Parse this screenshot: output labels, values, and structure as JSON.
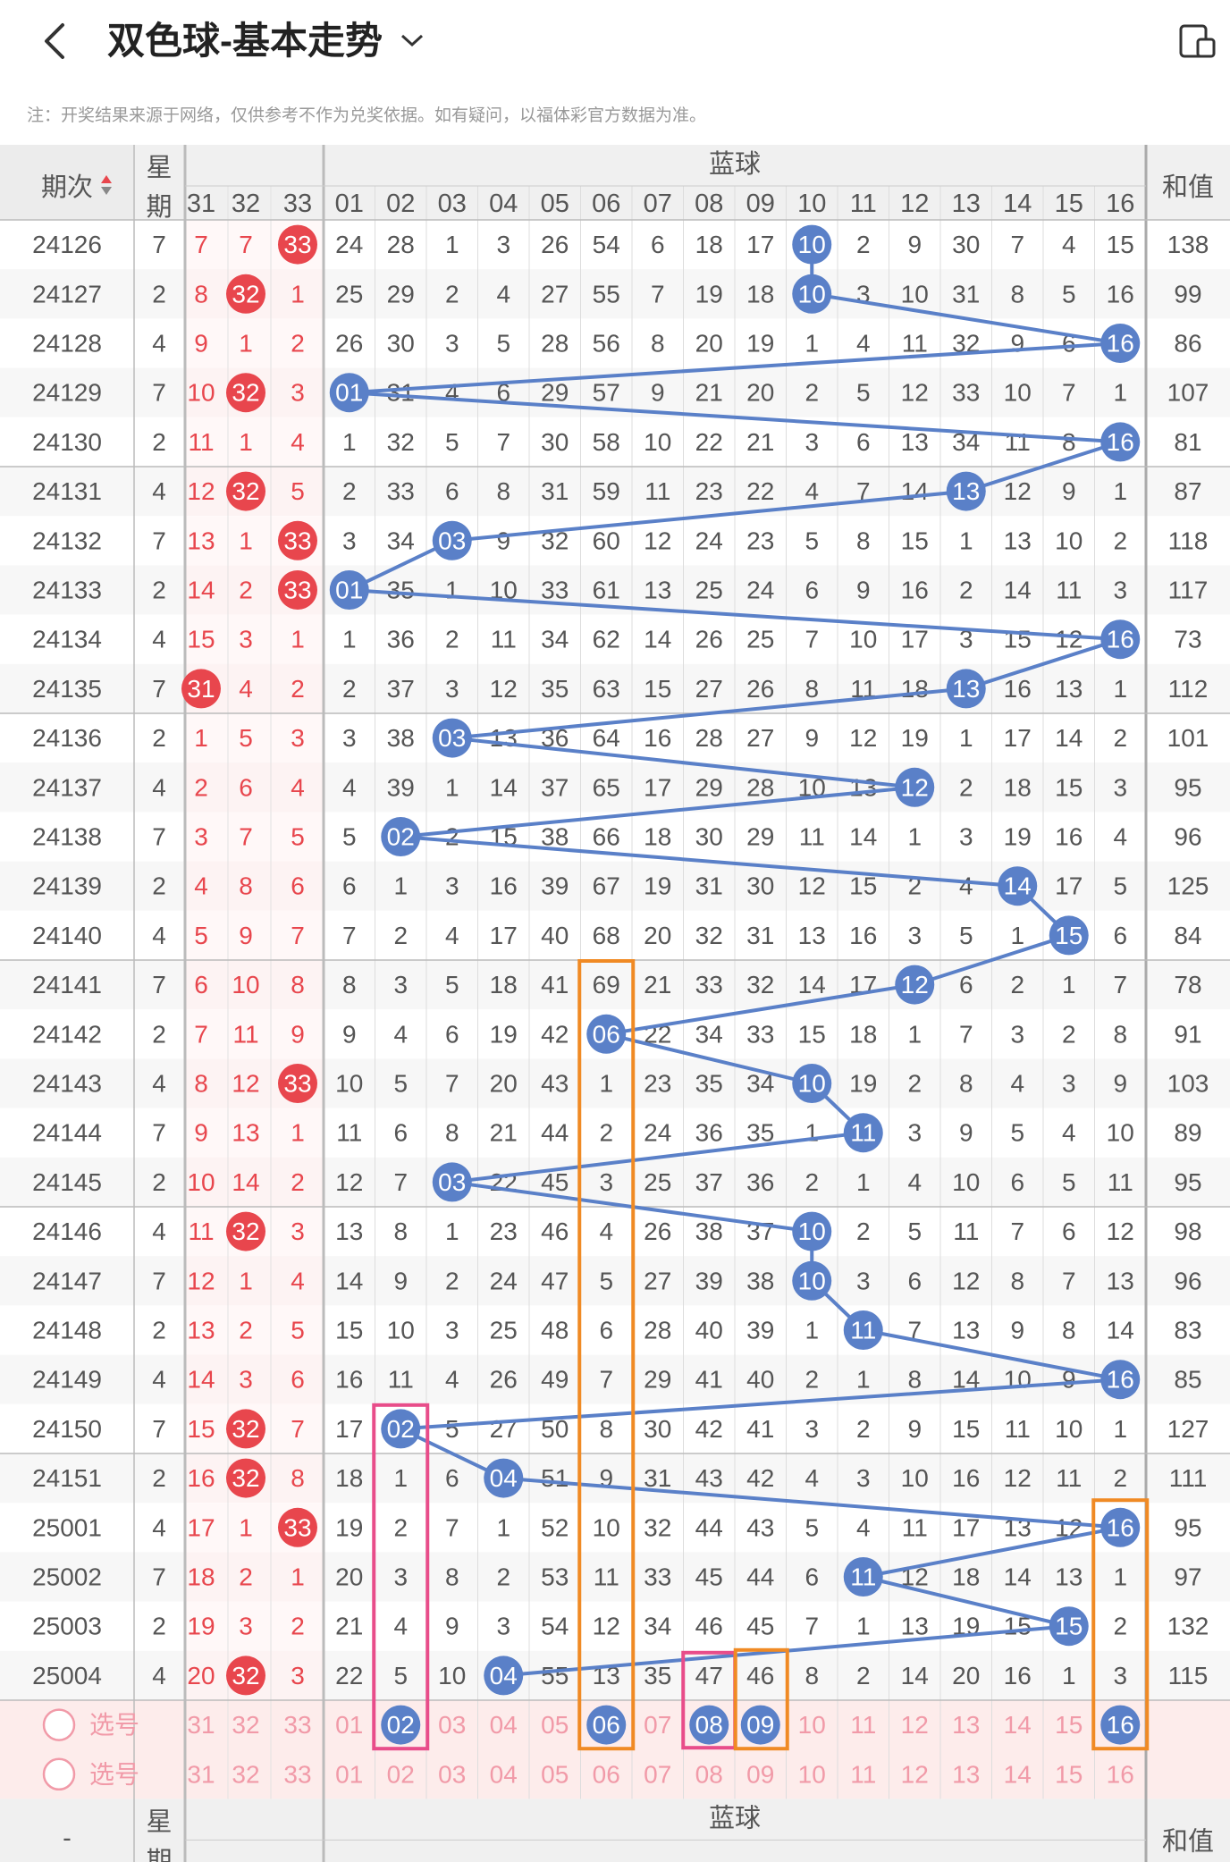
{
  "header": {
    "title": "双色球-基本走势"
  },
  "note": "注：开奖结果来源于网络，仅供参考不作为兑奖依据。如有疑问，以福体彩官方数据为准。",
  "columns": {
    "period": "期次",
    "week": "星期",
    "blue": "蓝球",
    "sum": "和值",
    "red_tail": [
      "31",
      "32",
      "33"
    ],
    "blue_nums": [
      "01",
      "02",
      "03",
      "04",
      "05",
      "06",
      "07",
      "08",
      "09",
      "10",
      "11",
      "12",
      "13",
      "14",
      "15",
      "16"
    ]
  },
  "footer": {
    "select": "选号",
    "period": "-",
    "week": "星期",
    "blue": "蓝球",
    "sum": "和值"
  },
  "colors": {
    "blue_ball": "#5a80c8",
    "red_ball": "#e8464d",
    "orange_box": "#f08a24",
    "pink_box": "#e84d8a"
  },
  "rows": [
    {
      "p": "24126",
      "w": "7",
      "r": [
        "7",
        "7",
        "33"
      ],
      "rb": [
        2
      ],
      "b": 10,
      "s": "138"
    },
    {
      "p": "24127",
      "w": "2",
      "r": [
        "8",
        "32",
        "1"
      ],
      "rb": [
        1
      ],
      "b": 10,
      "s": "99"
    },
    {
      "p": "24128",
      "w": "4",
      "r": [
        "9",
        "1",
        "2"
      ],
      "rb": [],
      "b": 16,
      "s": "86"
    },
    {
      "p": "24129",
      "w": "7",
      "r": [
        "10",
        "32",
        "3"
      ],
      "rb": [
        1
      ],
      "b": 1,
      "s": "107"
    },
    {
      "p": "24130",
      "w": "2",
      "r": [
        "11",
        "1",
        "4"
      ],
      "rb": [],
      "b": 16,
      "s": "81"
    },
    {
      "p": "24131",
      "w": "4",
      "r": [
        "12",
        "32",
        "5"
      ],
      "rb": [
        1
      ],
      "b": 13,
      "s": "87"
    },
    {
      "p": "24132",
      "w": "7",
      "r": [
        "13",
        "1",
        "33"
      ],
      "rb": [
        2
      ],
      "b": 3,
      "s": "118"
    },
    {
      "p": "24133",
      "w": "2",
      "r": [
        "14",
        "2",
        "33"
      ],
      "rb": [
        2
      ],
      "b": 1,
      "s": "117"
    },
    {
      "p": "24134",
      "w": "4",
      "r": [
        "15",
        "3",
        "1"
      ],
      "rb": [],
      "b": 16,
      "s": "73"
    },
    {
      "p": "24135",
      "w": "7",
      "r": [
        "31",
        "4",
        "2"
      ],
      "rb": [
        0
      ],
      "b": 13,
      "s": "112"
    },
    {
      "p": "24136",
      "w": "2",
      "r": [
        "1",
        "5",
        "3"
      ],
      "rb": [],
      "b": 3,
      "s": "101"
    },
    {
      "p": "24137",
      "w": "4",
      "r": [
        "2",
        "6",
        "4"
      ],
      "rb": [],
      "b": 12,
      "s": "95"
    },
    {
      "p": "24138",
      "w": "7",
      "r": [
        "3",
        "7",
        "5"
      ],
      "rb": [],
      "b": 2,
      "s": "96"
    },
    {
      "p": "24139",
      "w": "2",
      "r": [
        "4",
        "8",
        "6"
      ],
      "rb": [],
      "b": 14,
      "s": "125"
    },
    {
      "p": "24140",
      "w": "4",
      "r": [
        "5",
        "9",
        "7"
      ],
      "rb": [],
      "b": 15,
      "s": "84"
    },
    {
      "p": "24141",
      "w": "7",
      "r": [
        "6",
        "10",
        "8"
      ],
      "rb": [],
      "b": 12,
      "s": "78"
    },
    {
      "p": "24142",
      "w": "2",
      "r": [
        "7",
        "11",
        "9"
      ],
      "rb": [],
      "b": 6,
      "s": "91"
    },
    {
      "p": "24143",
      "w": "4",
      "r": [
        "8",
        "12",
        "33"
      ],
      "rb": [
        2
      ],
      "b": 10,
      "s": "103"
    },
    {
      "p": "24144",
      "w": "7",
      "r": [
        "9",
        "13",
        "1"
      ],
      "rb": [],
      "b": 11,
      "s": "89"
    },
    {
      "p": "24145",
      "w": "2",
      "r": [
        "10",
        "14",
        "2"
      ],
      "rb": [],
      "b": 3,
      "s": "95"
    },
    {
      "p": "24146",
      "w": "4",
      "r": [
        "11",
        "32",
        "3"
      ],
      "rb": [
        1
      ],
      "b": 10,
      "s": "98"
    },
    {
      "p": "24147",
      "w": "7",
      "r": [
        "12",
        "1",
        "4"
      ],
      "rb": [],
      "b": 10,
      "s": "96"
    },
    {
      "p": "24148",
      "w": "2",
      "r": [
        "13",
        "2",
        "5"
      ],
      "rb": [],
      "b": 11,
      "s": "83"
    },
    {
      "p": "24149",
      "w": "4",
      "r": [
        "14",
        "3",
        "6"
      ],
      "rb": [],
      "b": 16,
      "s": "85"
    },
    {
      "p": "24150",
      "w": "7",
      "r": [
        "15",
        "32",
        "7"
      ],
      "rb": [
        1
      ],
      "b": 2,
      "s": "127"
    },
    {
      "p": "24151",
      "w": "2",
      "r": [
        "16",
        "32",
        "8"
      ],
      "rb": [
        1
      ],
      "b": 4,
      "s": "111"
    },
    {
      "p": "25001",
      "w": "4",
      "r": [
        "17",
        "1",
        "33"
      ],
      "rb": [
        2
      ],
      "b": 16,
      "s": "95"
    },
    {
      "p": "25002",
      "w": "7",
      "r": [
        "18",
        "2",
        "1"
      ],
      "rb": [],
      "b": 11,
      "s": "97"
    },
    {
      "p": "25003",
      "w": "2",
      "r": [
        "19",
        "3",
        "2"
      ],
      "rb": [],
      "b": 15,
      "s": "132"
    },
    {
      "p": "25004",
      "w": "4",
      "r": [
        "20",
        "32",
        "3"
      ],
      "rb": [
        1
      ],
      "b": 4,
      "s": "115"
    }
  ],
  "blue_matrix": [
    [
      24,
      28,
      1,
      3,
      26,
      54,
      6,
      18,
      17,
      10,
      2,
      9,
      30,
      7,
      4,
      15
    ],
    [
      25,
      29,
      2,
      4,
      27,
      55,
      7,
      19,
      18,
      10,
      3,
      10,
      31,
      8,
      5,
      16
    ],
    [
      26,
      30,
      3,
      5,
      28,
      56,
      8,
      20,
      19,
      1,
      4,
      11,
      32,
      9,
      6,
      16
    ],
    [
      1,
      31,
      4,
      6,
      29,
      57,
      9,
      21,
      20,
      2,
      5,
      12,
      33,
      10,
      7,
      1
    ],
    [
      1,
      32,
      5,
      7,
      30,
      58,
      10,
      22,
      21,
      3,
      6,
      13,
      34,
      11,
      8,
      16
    ],
    [
      2,
      33,
      6,
      8,
      31,
      59,
      11,
      23,
      22,
      4,
      7,
      14,
      13,
      12,
      9,
      1
    ],
    [
      3,
      34,
      3,
      9,
      32,
      60,
      12,
      24,
      23,
      5,
      8,
      15,
      1,
      13,
      10,
      2
    ],
    [
      1,
      35,
      1,
      10,
      33,
      61,
      13,
      25,
      24,
      6,
      9,
      16,
      2,
      14,
      11,
      3
    ],
    [
      1,
      36,
      2,
      11,
      34,
      62,
      14,
      26,
      25,
      7,
      10,
      17,
      3,
      15,
      12,
      16
    ],
    [
      2,
      37,
      3,
      12,
      35,
      63,
      15,
      27,
      26,
      8,
      11,
      18,
      13,
      16,
      13,
      1
    ],
    [
      3,
      38,
      3,
      13,
      36,
      64,
      16,
      28,
      27,
      9,
      12,
      19,
      1,
      17,
      14,
      2
    ],
    [
      4,
      39,
      1,
      14,
      37,
      65,
      17,
      29,
      28,
      10,
      13,
      12,
      2,
      18,
      15,
      3
    ],
    [
      5,
      2,
      2,
      15,
      38,
      66,
      18,
      30,
      29,
      11,
      14,
      1,
      3,
      19,
      16,
      4
    ],
    [
      6,
      1,
      3,
      16,
      39,
      67,
      19,
      31,
      30,
      12,
      15,
      2,
      4,
      14,
      17,
      5
    ],
    [
      7,
      2,
      4,
      17,
      40,
      68,
      20,
      32,
      31,
      13,
      16,
      3,
      5,
      1,
      15,
      6
    ],
    [
      8,
      3,
      5,
      18,
      41,
      69,
      21,
      33,
      32,
      14,
      17,
      12,
      6,
      2,
      1,
      7
    ],
    [
      9,
      4,
      6,
      19,
      42,
      6,
      22,
      34,
      33,
      15,
      18,
      1,
      7,
      3,
      2,
      8
    ],
    [
      10,
      5,
      7,
      20,
      43,
      1,
      23,
      35,
      34,
      10,
      19,
      2,
      8,
      4,
      3,
      9
    ],
    [
      11,
      6,
      8,
      21,
      44,
      2,
      24,
      36,
      35,
      1,
      11,
      3,
      9,
      5,
      4,
      10
    ],
    [
      12,
      7,
      3,
      22,
      45,
      3,
      25,
      37,
      36,
      2,
      1,
      4,
      10,
      6,
      5,
      11
    ],
    [
      13,
      8,
      1,
      23,
      46,
      4,
      26,
      38,
      37,
      10,
      2,
      5,
      11,
      7,
      6,
      12
    ],
    [
      14,
      9,
      2,
      24,
      47,
      5,
      27,
      39,
      38,
      10,
      3,
      6,
      12,
      8,
      7,
      13
    ],
    [
      15,
      10,
      3,
      25,
      48,
      6,
      28,
      40,
      39,
      1,
      11,
      7,
      13,
      9,
      8,
      14
    ],
    [
      16,
      11,
      4,
      26,
      49,
      7,
      29,
      41,
      40,
      2,
      1,
      8,
      14,
      10,
      9,
      16
    ],
    [
      17,
      2,
      5,
      27,
      50,
      8,
      30,
      42,
      41,
      3,
      2,
      9,
      15,
      11,
      10,
      1
    ],
    [
      18,
      1,
      6,
      4,
      51,
      9,
      31,
      43,
      42,
      4,
      3,
      10,
      16,
      12,
      11,
      2
    ],
    [
      19,
      2,
      7,
      1,
      52,
      10,
      32,
      44,
      43,
      5,
      4,
      11,
      17,
      13,
      12,
      16
    ],
    [
      20,
      3,
      8,
      2,
      53,
      11,
      33,
      45,
      44,
      6,
      11,
      12,
      18,
      14,
      13,
      1
    ],
    [
      21,
      4,
      9,
      3,
      54,
      12,
      34,
      46,
      45,
      7,
      1,
      13,
      19,
      15,
      15,
      2
    ],
    [
      22,
      5,
      10,
      4,
      55,
      13,
      35,
      47,
      46,
      8,
      2,
      14,
      20,
      16,
      1,
      3
    ]
  ],
  "selected": [
    2,
    6,
    8,
    9,
    16
  ]
}
